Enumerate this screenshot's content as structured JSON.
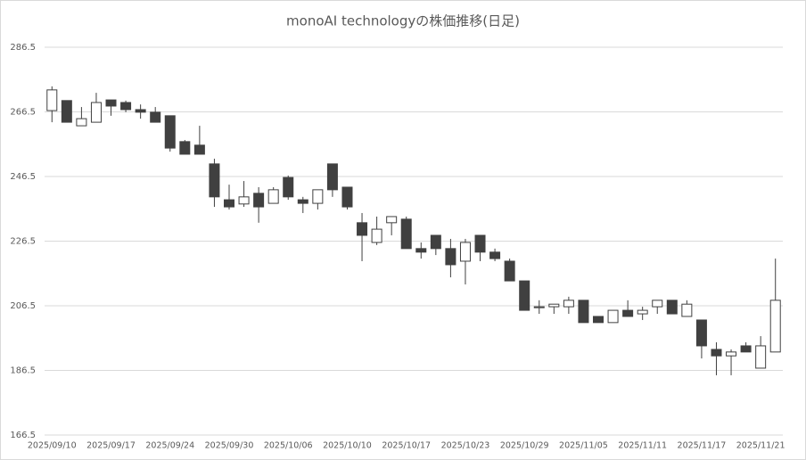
{
  "chart_data": {
    "type": "candlestick",
    "title": "monoAI technologyの株価推移(日足)",
    "categories": [
      "2025/09/10",
      null,
      null,
      null,
      "2025/09/17",
      null,
      null,
      null,
      "2025/09/24",
      null,
      null,
      null,
      "2025/09/30",
      null,
      null,
      null,
      "2025/10/06",
      null,
      null,
      null,
      "2025/10/10",
      null,
      null,
      null,
      "2025/10/17",
      null,
      null,
      null,
      "2025/10/23",
      null,
      null,
      null,
      "2025/10/29",
      null,
      null,
      null,
      "2025/11/05",
      null,
      null,
      null,
      "2025/11/11",
      null,
      null,
      null,
      "2025/11/17",
      null,
      null,
      null,
      "2025/11/21",
      null
    ],
    "open": [
      266.9,
      270.0,
      262.2,
      263.3,
      270.2,
      269.4,
      267.2,
      266.4,
      265.3,
      257.3,
      256.2,
      250.4,
      239.3,
      238.0,
      241.3,
      238.2,
      246.2,
      239.3,
      238.2,
      250.4,
      243.2,
      232.2,
      226.1,
      232.2,
      233.3,
      224.2,
      228.3,
      224.2,
      220.3,
      228.3,
      223.1,
      220.3,
      214.2,
      205.9,
      206.2,
      206.2,
      208.2,
      203.2,
      201.3,
      205.1,
      204.0,
      206.2,
      208.2,
      203.2,
      202.1,
      193.0,
      191.0,
      194.1,
      187.2,
      192.2
    ],
    "high": [
      274.4,
      270.0,
      268.0,
      272.4,
      270.2,
      270.0,
      268.8,
      268.0,
      265.3,
      257.8,
      262.2,
      252.0,
      244.0,
      245.1,
      243.2,
      243.2,
      246.8,
      240.2,
      242.4,
      250.4,
      243.2,
      235.2,
      234.1,
      234.1,
      234.1,
      226.1,
      228.3,
      227.2,
      227.2,
      228.3,
      224.2,
      221.1,
      214.2,
      208.2,
      207.0,
      209.3,
      208.2,
      203.2,
      205.1,
      208.2,
      206.2,
      208.2,
      208.2,
      208.2,
      202.1,
      195.2,
      193.0,
      195.2,
      197.1,
      221.1
    ],
    "low": [
      263.3,
      263.3,
      262.2,
      263.3,
      265.3,
      266.4,
      264.4,
      263.3,
      254.2,
      253.4,
      253.4,
      237.1,
      236.3,
      237.1,
      232.2,
      238.2,
      239.3,
      235.2,
      236.3,
      240.2,
      236.3,
      220.3,
      225.3,
      228.3,
      224.2,
      221.1,
      222.2,
      215.3,
      213.1,
      220.3,
      220.3,
      214.2,
      205.1,
      204.0,
      204.0,
      204.0,
      201.3,
      201.3,
      201.3,
      203.2,
      202.1,
      204.0,
      204.0,
      203.2,
      190.2,
      185.0,
      185.0,
      192.2,
      187.2,
      192.2
    ],
    "close": [
      273.3,
      263.3,
      264.4,
      269.4,
      268.3,
      267.2,
      266.4,
      263.3,
      255.3,
      253.4,
      253.4,
      240.2,
      237.1,
      240.2,
      237.1,
      242.4,
      240.2,
      238.2,
      242.4,
      242.4,
      237.1,
      228.3,
      230.2,
      234.1,
      224.2,
      223.1,
      224.2,
      219.2,
      226.1,
      223.1,
      221.1,
      214.2,
      205.1,
      206.2,
      207.0,
      208.2,
      201.3,
      201.3,
      205.1,
      203.2,
      205.1,
      208.2,
      204.0,
      207.0,
      194.1,
      191.0,
      192.2,
      192.2,
      194.1,
      208.2
    ],
    "up_color": "#ffffff",
    "down_color": "#404040",
    "outline_color": "#404040",
    "ylim": [
      166.5,
      286.5
    ],
    "yticks": [
      166.5,
      186.5,
      206.5,
      226.5,
      246.5,
      266.5,
      286.5
    ],
    "grid": true
  }
}
